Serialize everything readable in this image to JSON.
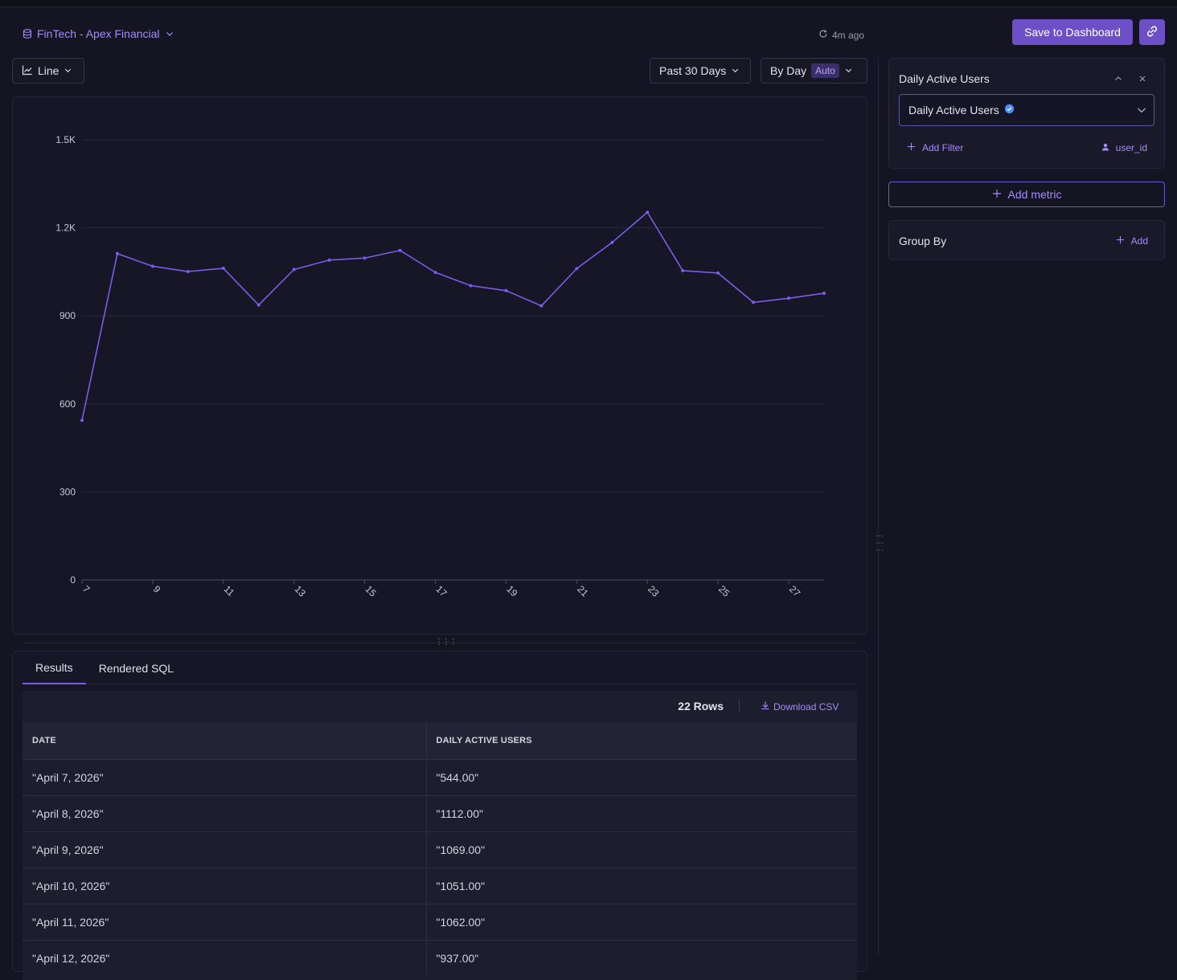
{
  "header": {
    "database": "FinTech - Apex Financial",
    "refreshed": "4m ago",
    "save_label": "Save to Dashboard"
  },
  "toolbar": {
    "chart_type": "Line",
    "range": "Past 30 Days",
    "granularity": "By Day",
    "auto_badge": "Auto"
  },
  "metric_panel": {
    "title": "Daily Active Users",
    "selected_metric": "Daily Active Users",
    "add_filter": "Add Filter",
    "entity": "user_id",
    "add_metric": "Add metric",
    "group_by_title": "Group By",
    "group_by_add": "Add"
  },
  "results": {
    "tabs": [
      "Results",
      "Rendered SQL"
    ],
    "rows_count": "22 Rows",
    "download": "Download CSV",
    "columns": [
      "DATE",
      "DAILY ACTIVE USERS"
    ],
    "rows": [
      [
        "\"April 7, 2026\"",
        "\"544.00\""
      ],
      [
        "\"April 8, 2026\"",
        "\"1112.00\""
      ],
      [
        "\"April 9, 2026\"",
        "\"1069.00\""
      ],
      [
        "\"April 10, 2026\"",
        "\"1051.00\""
      ],
      [
        "\"April 11, 2026\"",
        "\"1062.00\""
      ],
      [
        "\"April 12, 2026\"",
        "\"937.00\""
      ]
    ]
  },
  "colors": {
    "accent": "#6d4fc7",
    "line": "#7c5ce6",
    "link": "#a78bfa",
    "background": "#141423"
  },
  "chart_data": {
    "type": "line",
    "x": [
      7,
      8,
      9,
      10,
      11,
      12,
      13,
      14,
      15,
      16,
      17,
      18,
      19,
      20,
      21,
      22,
      23,
      24,
      25,
      26,
      27,
      28
    ],
    "x_tick_labels": [
      "7",
      "9",
      "11",
      "13",
      "15",
      "17",
      "19",
      "21",
      "23",
      "25",
      "27"
    ],
    "y_tick_labels": [
      "0",
      "300",
      "600",
      "900",
      "1.2K",
      "1.5K"
    ],
    "ylim": [
      0,
      1500
    ],
    "series": [
      {
        "values": [
          544,
          1112,
          1069,
          1051,
          1062,
          937,
          1058,
          1090,
          1097,
          1123,
          1048,
          1003,
          986,
          934,
          1061,
          1150,
          1253,
          1054,
          1046,
          946,
          960,
          977
        ]
      }
    ],
    "grid": true,
    "legend": "none"
  }
}
